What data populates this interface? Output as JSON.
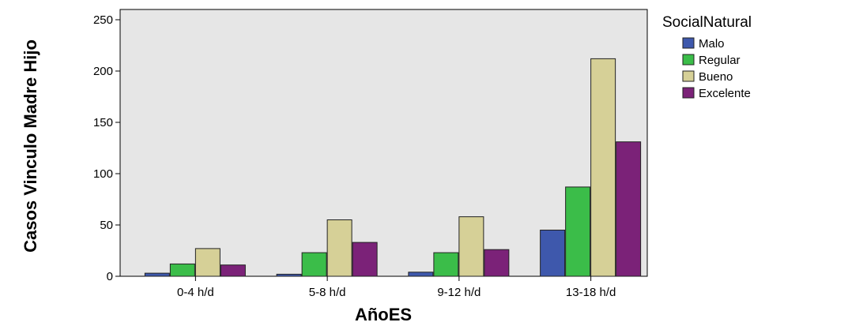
{
  "chart_data": {
    "type": "bar",
    "title": "",
    "xlabel": "AñoES",
    "ylabel": "Casos Vinculo Madre Hijo",
    "categories": [
      "0-4 h/d",
      "5-8 h/d",
      "9-12 h/d",
      "13-18 h/d"
    ],
    "ylim": [
      0,
      260
    ],
    "yticks": [
      0,
      50,
      100,
      150,
      200,
      250
    ],
    "grid": false,
    "legend": {
      "title": "SocialNatural",
      "placement": "right"
    },
    "plot_background": "#e6e6e6",
    "series": [
      {
        "name": "Malo",
        "color": "#3e58ac",
        "values": [
          3,
          2,
          4,
          45
        ]
      },
      {
        "name": "Regular",
        "color": "#3bbd49",
        "values": [
          12,
          23,
          23,
          87
        ]
      },
      {
        "name": "Bueno",
        "color": "#d6d097",
        "values": [
          27,
          55,
          58,
          212
        ]
      },
      {
        "name": "Excelente",
        "color": "#7b2278",
        "values": [
          11,
          33,
          26,
          131
        ]
      }
    ]
  }
}
